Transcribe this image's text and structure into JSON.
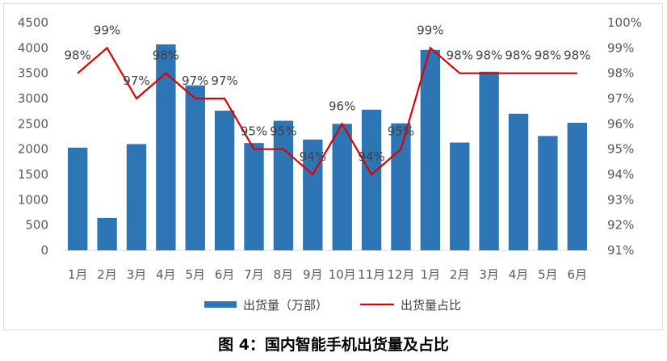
{
  "caption": "图 4：国内智能手机出货量及占比",
  "chart_data": {
    "type": "bar+line",
    "categories": [
      "1月",
      "2月",
      "3月",
      "4月",
      "5月",
      "6月",
      "7月",
      "8月",
      "9月",
      "10月",
      "11月",
      "12月",
      "1月",
      "2月",
      "3月",
      "4月",
      "5月",
      "6月"
    ],
    "series": [
      {
        "name": "出货量（万部）",
        "type": "bar",
        "axis": "left",
        "color": "#2e75b6",
        "values": [
          2030,
          640,
          2100,
          4070,
          3260,
          2760,
          2120,
          2560,
          2190,
          2500,
          2780,
          2510,
          3960,
          2130,
          3530,
          2700,
          2260,
          2520
        ]
      },
      {
        "name": "出货量占比",
        "type": "line",
        "axis": "right",
        "color": "#e00000",
        "values": [
          98,
          99,
          97,
          98,
          97,
          97,
          95,
          95,
          94,
          96,
          94,
          95,
          99,
          98,
          98,
          98,
          98,
          98
        ],
        "labels": [
          "98%",
          "99%",
          "97%",
          "98%",
          "97%",
          "97%",
          "95%",
          "95%",
          "94%",
          "96%",
          "94%",
          "95%",
          "99%",
          "98%",
          "98%",
          "98%",
          "98%",
          "98%"
        ]
      }
    ],
    "y_left": {
      "min": 0,
      "max": 4500,
      "ticks": [
        "0",
        "500",
        "1000",
        "1500",
        "2000",
        "2500",
        "3000",
        "3500",
        "4000",
        "4500"
      ]
    },
    "y_right": {
      "min": 91,
      "max": 100,
      "ticks": [
        "91%",
        "92%",
        "93%",
        "94%",
        "95%",
        "96%",
        "97%",
        "98%",
        "99%",
        "100%"
      ]
    },
    "grid": false,
    "legend_position": "bottom"
  }
}
